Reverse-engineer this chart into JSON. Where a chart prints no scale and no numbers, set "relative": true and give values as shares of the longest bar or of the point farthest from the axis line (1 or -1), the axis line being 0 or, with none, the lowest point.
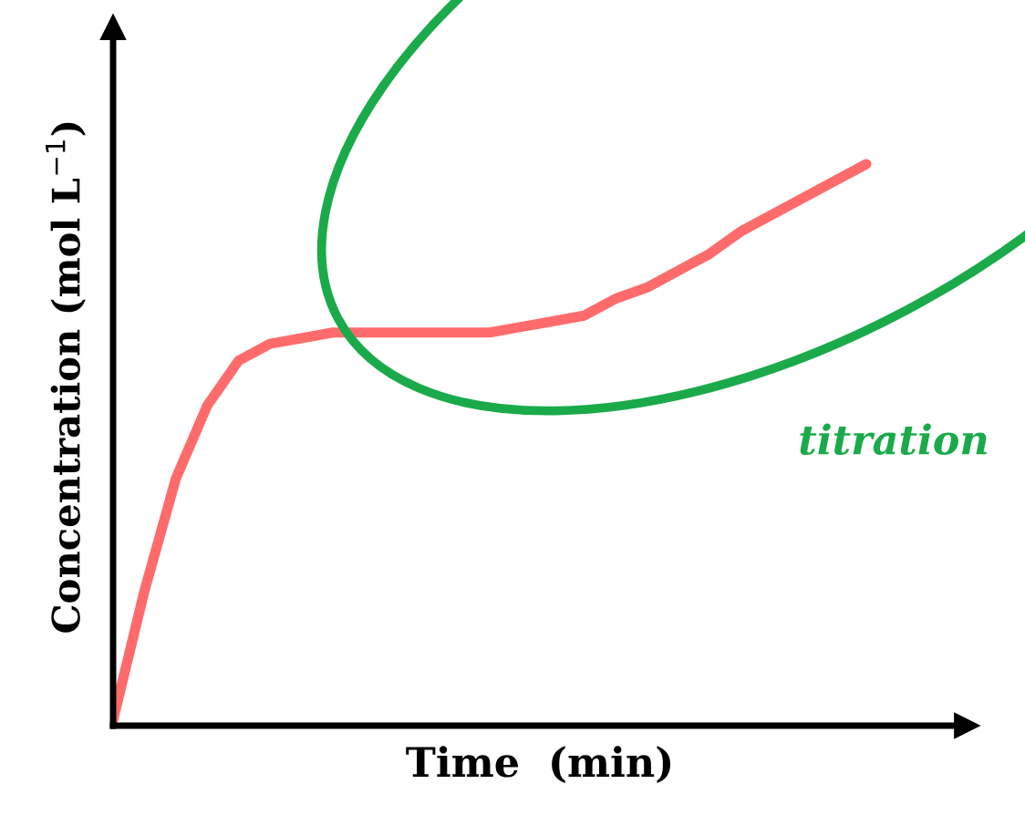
{
  "chart_data": {
    "type": "line",
    "relative": true,
    "xlabel": "Time  (min)",
    "ylabel": "Concentration (mol L$^{−1}$)",
    "categories": [
      null,
      null,
      null,
      null,
      null,
      null,
      null,
      null,
      null,
      null,
      null,
      null,
      null,
      null,
      null,
      null,
      null,
      null,
      null,
      null,
      null,
      null,
      null,
      null,
      null
    ],
    "series": [
      {
        "color": "#ff6b6b",
        "values": [
          0.01,
          0.24,
          0.44,
          0.57,
          0.65,
          0.68,
          0.69,
          0.7,
          0.7,
          0.7,
          0.7,
          0.7,
          0.7,
          0.71,
          0.72,
          0.73,
          0.76,
          0.78,
          0.81,
          0.84,
          0.88,
          0.91,
          0.94,
          0.97,
          1.0
        ]
      }
    ],
    "annotations": [
      "titration"
    ],
    "legend": false,
    "marker": "none",
    "line_style": "solid"
  }
}
